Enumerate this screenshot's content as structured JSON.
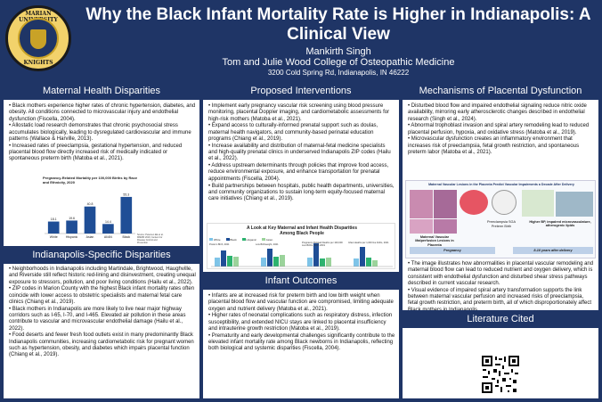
{
  "header": {
    "title": "Why the Black Infant Mortality Rate is Higher in Indianapolis: A Clinical View",
    "author": "Mankirth Singh",
    "affiliation": "Tom and Julie Wood College of Osteopathic Medicine",
    "address": "3200 Cold Spring Rd, Indianapolis, IN 46222",
    "logo_text_top": "MARIAN UNIVERSITY",
    "logo_text_bottom": "KNIGHTS"
  },
  "col1": {
    "maternal": {
      "heading": "Maternal Health Disparities",
      "bullets": [
        "• Black mothers experience higher rates of chronic hypertension, diabetes, and obesity. All conditions connected to microvascular injury and endothelial dysfunction (Fiscella, 2004).",
        "• Allostatic load research demonstrates that chronic psychosocial stress accumulates biologically, leading to dysregulated cardiovascular and immune patterns (Wallace & Harville, 2013).",
        "• Increased rates of preeclampsia, gestational hypertension, and reduced placental blood flow directly increased risk of medically indicated or spontaneous preterm birth (Matoba et al., 2021)."
      ]
    },
    "chart": {
      "title": "Pregnancy-Related Mortality per 100,000 Births by Race and Ethnicity, 2020",
      "note": "Source: Petersen EE et al. MMWR 2019; Centers for Disease Control and Prevention"
    },
    "indy": {
      "heading": "Indianapolis-Specific Disparities",
      "bullets": [
        "• Neighborhoods in Indianapolis including Martindale, Brightwood, Haughville, and Riverside still reflect historic red-lining and disinvestment, creating unequal exposure to stressors, pollution, and poor living conditions (Hailu et al., 2022).",
        "• ZIP codes in Marion County with the highest Black infant mortality rates often coincide with lower access to obstetric specialists and maternal fetal care clinics (Chiang et al., 2019).",
        "• Black mothers in Indianapolis are more likely to live near major highway corridors such as I-65, I-70, and I-465. Elevated air pollution in these areas contribute to vascular and microvascular endothelial damage (Hailu et al., 2022).",
        "• Food deserts and fewer fresh food outlets exist in many predominantly Black Indianapolis communities, increasing cardiometabolic risk for pregnant women such as hypertension, obesity, and diabetes which impairs placental function (Chiang et al., 2019)."
      ]
    }
  },
  "chart_data": {
    "type": "bar",
    "title": "Pregnancy-Related Mortality per 100,000 Births by Race and Ethnicity, 2020",
    "categories": [
      "White",
      "Hispanic",
      "Asian",
      "AI/AN",
      "Black"
    ],
    "values": [
      18.1,
      19.6,
      40.8,
      14.4,
      55.3
    ],
    "ylim": [
      0,
      70
    ],
    "color": "#1f4e96"
  },
  "col2": {
    "proposed": {
      "heading": "Proposed Interventions",
      "bullets": [
        "• Implement early pregnancy vascular risk screening using blood pressure monitoring, placental Doppler imaging, and cardiometabolic assessments for high-risk mothers (Matoba et al., 2021).",
        "• Expand access to culturally-informed prenatal support such as doulas, maternal health navigators, and community-based perinatal education programs (Chiang et al., 2019).",
        "• Increase availability and distribution of maternal-fetal medicine specialists and high-quality prenatal clinics in underserved Indianapolis ZIP codes (Hailu et al., 2022).",
        "• Address upstream determinants through policies that improve food access, reduce environmental exposure, and enhance transportation for prenatal appointments (Fiscella, 2004).",
        "• Build partnerships between hospitals, public health departments, universities, and community organizations to sustain long-term equity-focused maternal care initiatives (Chiang et al., 2019)."
      ]
    },
    "figure": {
      "title": "A Look at Key Maternal and Infant Health Disparities Among Black People",
      "legend": [
        "White",
        "Black",
        "Hispanic",
        "Asian"
      ],
      "panels": [
        "Preterm Birth, 2021",
        "Low Birthweight, 2021",
        "Pregnancy-Related Deaths per 100,000 Live Births, 2017-2019",
        "Infant deaths per 1,000 live births, 2021"
      ]
    },
    "outcomes": {
      "heading": "Infant Outcomes",
      "bullets": [
        "• Infants are at increased risk for preterm birth and low birth weight when placental blood flow and vascular function are compromised, limiting adequate oxygen and nutrient delivery (Matoba et al., 2021).",
        "• Higher rates of neonatal complications such as respiratory distress, infection susceptibility, and extended NICU stays are linked to placental insufficiency and intrauterine growth restriction (Matoba et al., 2019).",
        "• Prematurity and early developmental challenges significantly contribute to the elevated infant mortality rate among Black newborns in Indianapolis, reflecting both biological and systemic disparities (Fiscella, 2004)."
      ]
    }
  },
  "col3": {
    "mechanisms": {
      "heading": "Mechanisms of Placental Dysfunction",
      "bullets": [
        "• Disturbed blood flow and impaired endothelial signaling reduce nitric oxide availability, mirroring early atherosclerotic changes described in endothelial research (Singh et al., 2024).",
        "• Abnormal trophoblast invasion and spiral artery remodeling lead to reduced placental perfusion, hypoxia, and oxidative stress (Matoba et al., 2019).",
        "• Microvascular dysfunction creates an inflammatory environment that increases risk of preeclampsia, fetal growth restriction, and spontaneous preterm labor (Matoba et al., 2021)."
      ]
    },
    "figure": {
      "title": "Maternal Vascular Lesions in the Placenta Predict Vascular Impairments a Decade After Delivery",
      "left_label": "Maternal Vascular Malperfusion Lesions in Placenta",
      "mid_label": "Preeclampsia SGA Preterm Birth",
      "right_label": "Higher BP, impaired microvasculature, atherogenic lipids",
      "pregnancy": "Pregnancy",
      "after": "8-10 years after delivery"
    },
    "figure_bullets": [
      "• The image illustrates how abnormalities in placental vascular remodeling and maternal blood flow can lead to reduced nutrient and oxygen delivery, which is consistent with endothelial dysfunction and disturbed shear stress pathways described in current vascular research.",
      "• Visual evidence of impaired spiral artery transformation supports the link between maternal vascular perfusion and increased risks of preeclampsia, fetal growth restriction, and preterm birth, all of which disproportionately affect Black mothers in Indianapolis."
    ],
    "lit": {
      "heading": "Literature Cited"
    }
  }
}
